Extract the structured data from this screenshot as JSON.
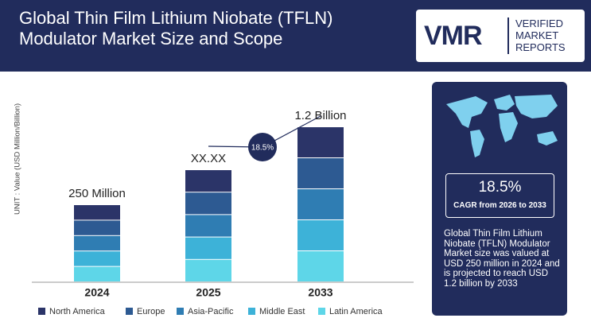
{
  "header": {
    "title": "Global Thin Film Lithium Niobate (TFLN) Modulator Market Size and Scope",
    "logo": {
      "mark": "VMR",
      "lines": [
        "VERIFIED",
        "MARKET",
        "REPORTS"
      ]
    }
  },
  "chart": {
    "unit_label": "UNIT : Value (USD Million/Billion)",
    "categories": [
      "2024",
      "2025",
      "2033"
    ],
    "bar_labels": [
      "250 Million",
      "XX.XX",
      "1.2 Billion"
    ],
    "cagr_bubble": "18.5%",
    "legend": [
      {
        "name": "North America",
        "color": "#2b3468"
      },
      {
        "name": "Europe",
        "color": "#2d5a92"
      },
      {
        "name": "Asia-Pacific",
        "color": "#2f7db3"
      },
      {
        "name": "Middle East",
        "color": "#3db2d8"
      },
      {
        "name": "Latin America",
        "color": "#5ed6e8"
      }
    ]
  },
  "panel": {
    "cagr_value": "18.5%",
    "cagr_label": "CAGR from 2026 to 2033",
    "description": "Global Thin Film Lithium Niobate (TFLN) Modulator Market size was valued at USD 250 million in 2024 and is projected to reach USD 1.2 billion by 2033"
  }
}
